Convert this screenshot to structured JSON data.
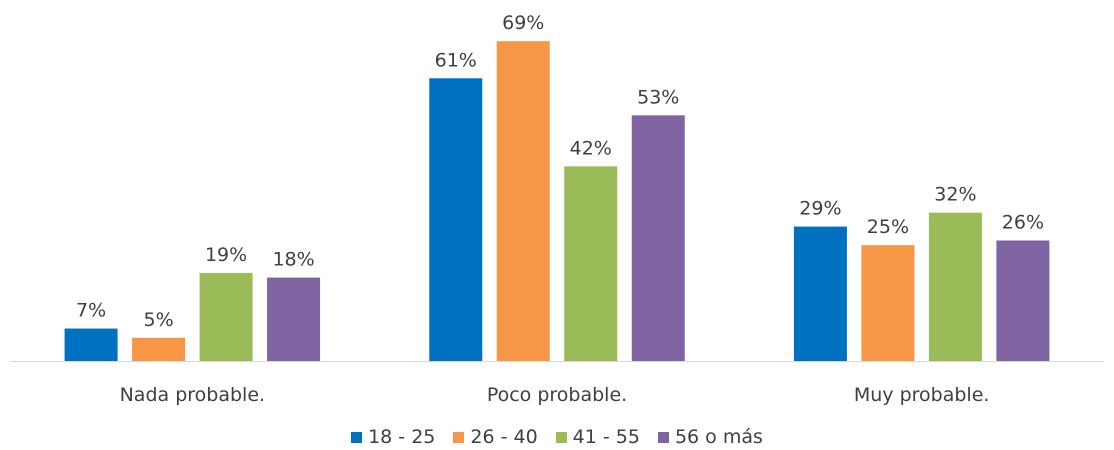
{
  "chart_data": {
    "type": "bar",
    "categories": [
      "Nada probable.",
      "Poco probable.",
      "Muy probable."
    ],
    "series": [
      {
        "name": "18 - 25",
        "color": "#0070C0",
        "values": [
          7,
          61,
          29
        ],
        "labels": [
          "7%",
          "61%",
          "29%"
        ]
      },
      {
        "name": "26 - 40",
        "color": "#F79646",
        "values": [
          5,
          69,
          25
        ],
        "labels": [
          "5%",
          "69%",
          "25%"
        ]
      },
      {
        "name": "41 - 55",
        "color": "#9BBB59",
        "values": [
          19,
          42,
          32
        ],
        "labels": [
          "19%",
          "42%",
          "32%"
        ]
      },
      {
        "name": "56 o más",
        "color": "#8064A2",
        "values": [
          18,
          53,
          26
        ],
        "labels": [
          "18%",
          "53%",
          "26%"
        ]
      }
    ],
    "title": "",
    "xlabel": "",
    "ylabel": "",
    "ylim": [
      0,
      75
    ],
    "grid": false,
    "legend_position": "bottom"
  }
}
